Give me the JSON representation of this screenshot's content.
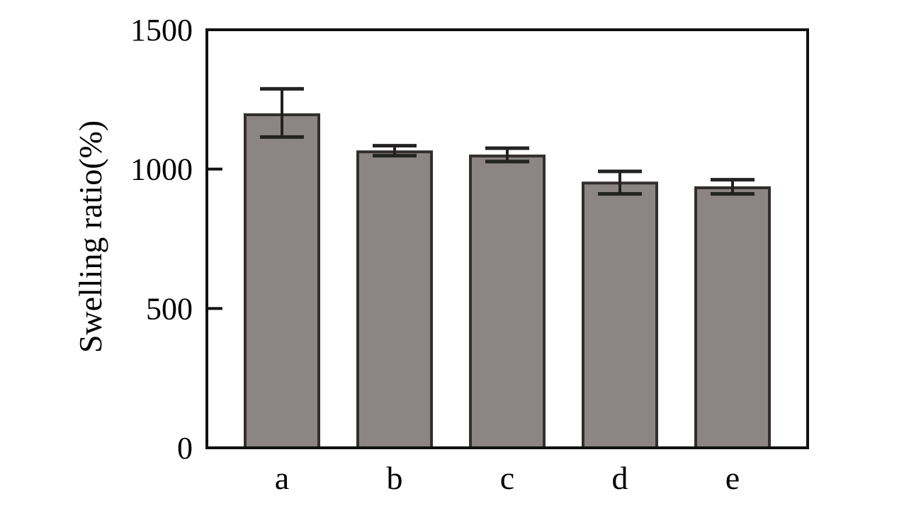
{
  "figure": {
    "background": "#ffffff"
  },
  "chart_data": {
    "type": "bar",
    "title": "",
    "categories": [
      "a",
      "b",
      "c",
      "d",
      "e"
    ],
    "values": [
      1195,
      1062,
      1047,
      950,
      933
    ],
    "error_high": [
      1288,
      1084,
      1075,
      992,
      962
    ],
    "error_low": [
      1115,
      1048,
      1027,
      911,
      911
    ],
    "xlabel": "",
    "ylabel": "Swelling ratio(%)",
    "ylim": [
      0,
      1500
    ],
    "yticks": [
      0,
      500,
      1000,
      1500
    ],
    "grid": false,
    "legend": "none",
    "bar_fill": "#8c8585",
    "bar_stroke": "#332d2d",
    "axis_color": "#111111",
    "error_color": "#222222",
    "text_color": "#000000"
  }
}
